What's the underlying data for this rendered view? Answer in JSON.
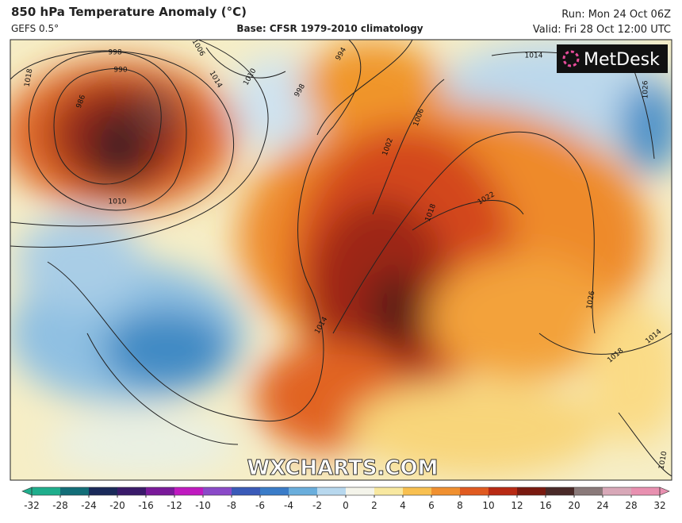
{
  "header": {
    "title": "850 hPa Temperature Anomaly (°C)",
    "model": "GEFS 0.5°",
    "base": "Base: CFSR 1979-2010 climatology",
    "run": "Run: Mon 24 Oct 06Z",
    "valid": "Valid: Fri 28 Oct 12:00 UTC"
  },
  "logo": "MetDesk",
  "watermark": "WXCHARTS.COM",
  "colorbar": {
    "ticks": [
      -32,
      -28,
      -24,
      -20,
      -16,
      -12,
      -10,
      -8,
      -6,
      -4,
      -2,
      0,
      2,
      4,
      6,
      8,
      10,
      12,
      16,
      20,
      24,
      28,
      32
    ]
  },
  "isobar_labels": [
    "998",
    "990",
    "986",
    "1018",
    "1010",
    "1006",
    "1014",
    "1010",
    "998",
    "994",
    "1002",
    "1006",
    "1018",
    "1022",
    "1026",
    "1018",
    "1014",
    "1014",
    "1026",
    "1010",
    "1014"
  ]
}
